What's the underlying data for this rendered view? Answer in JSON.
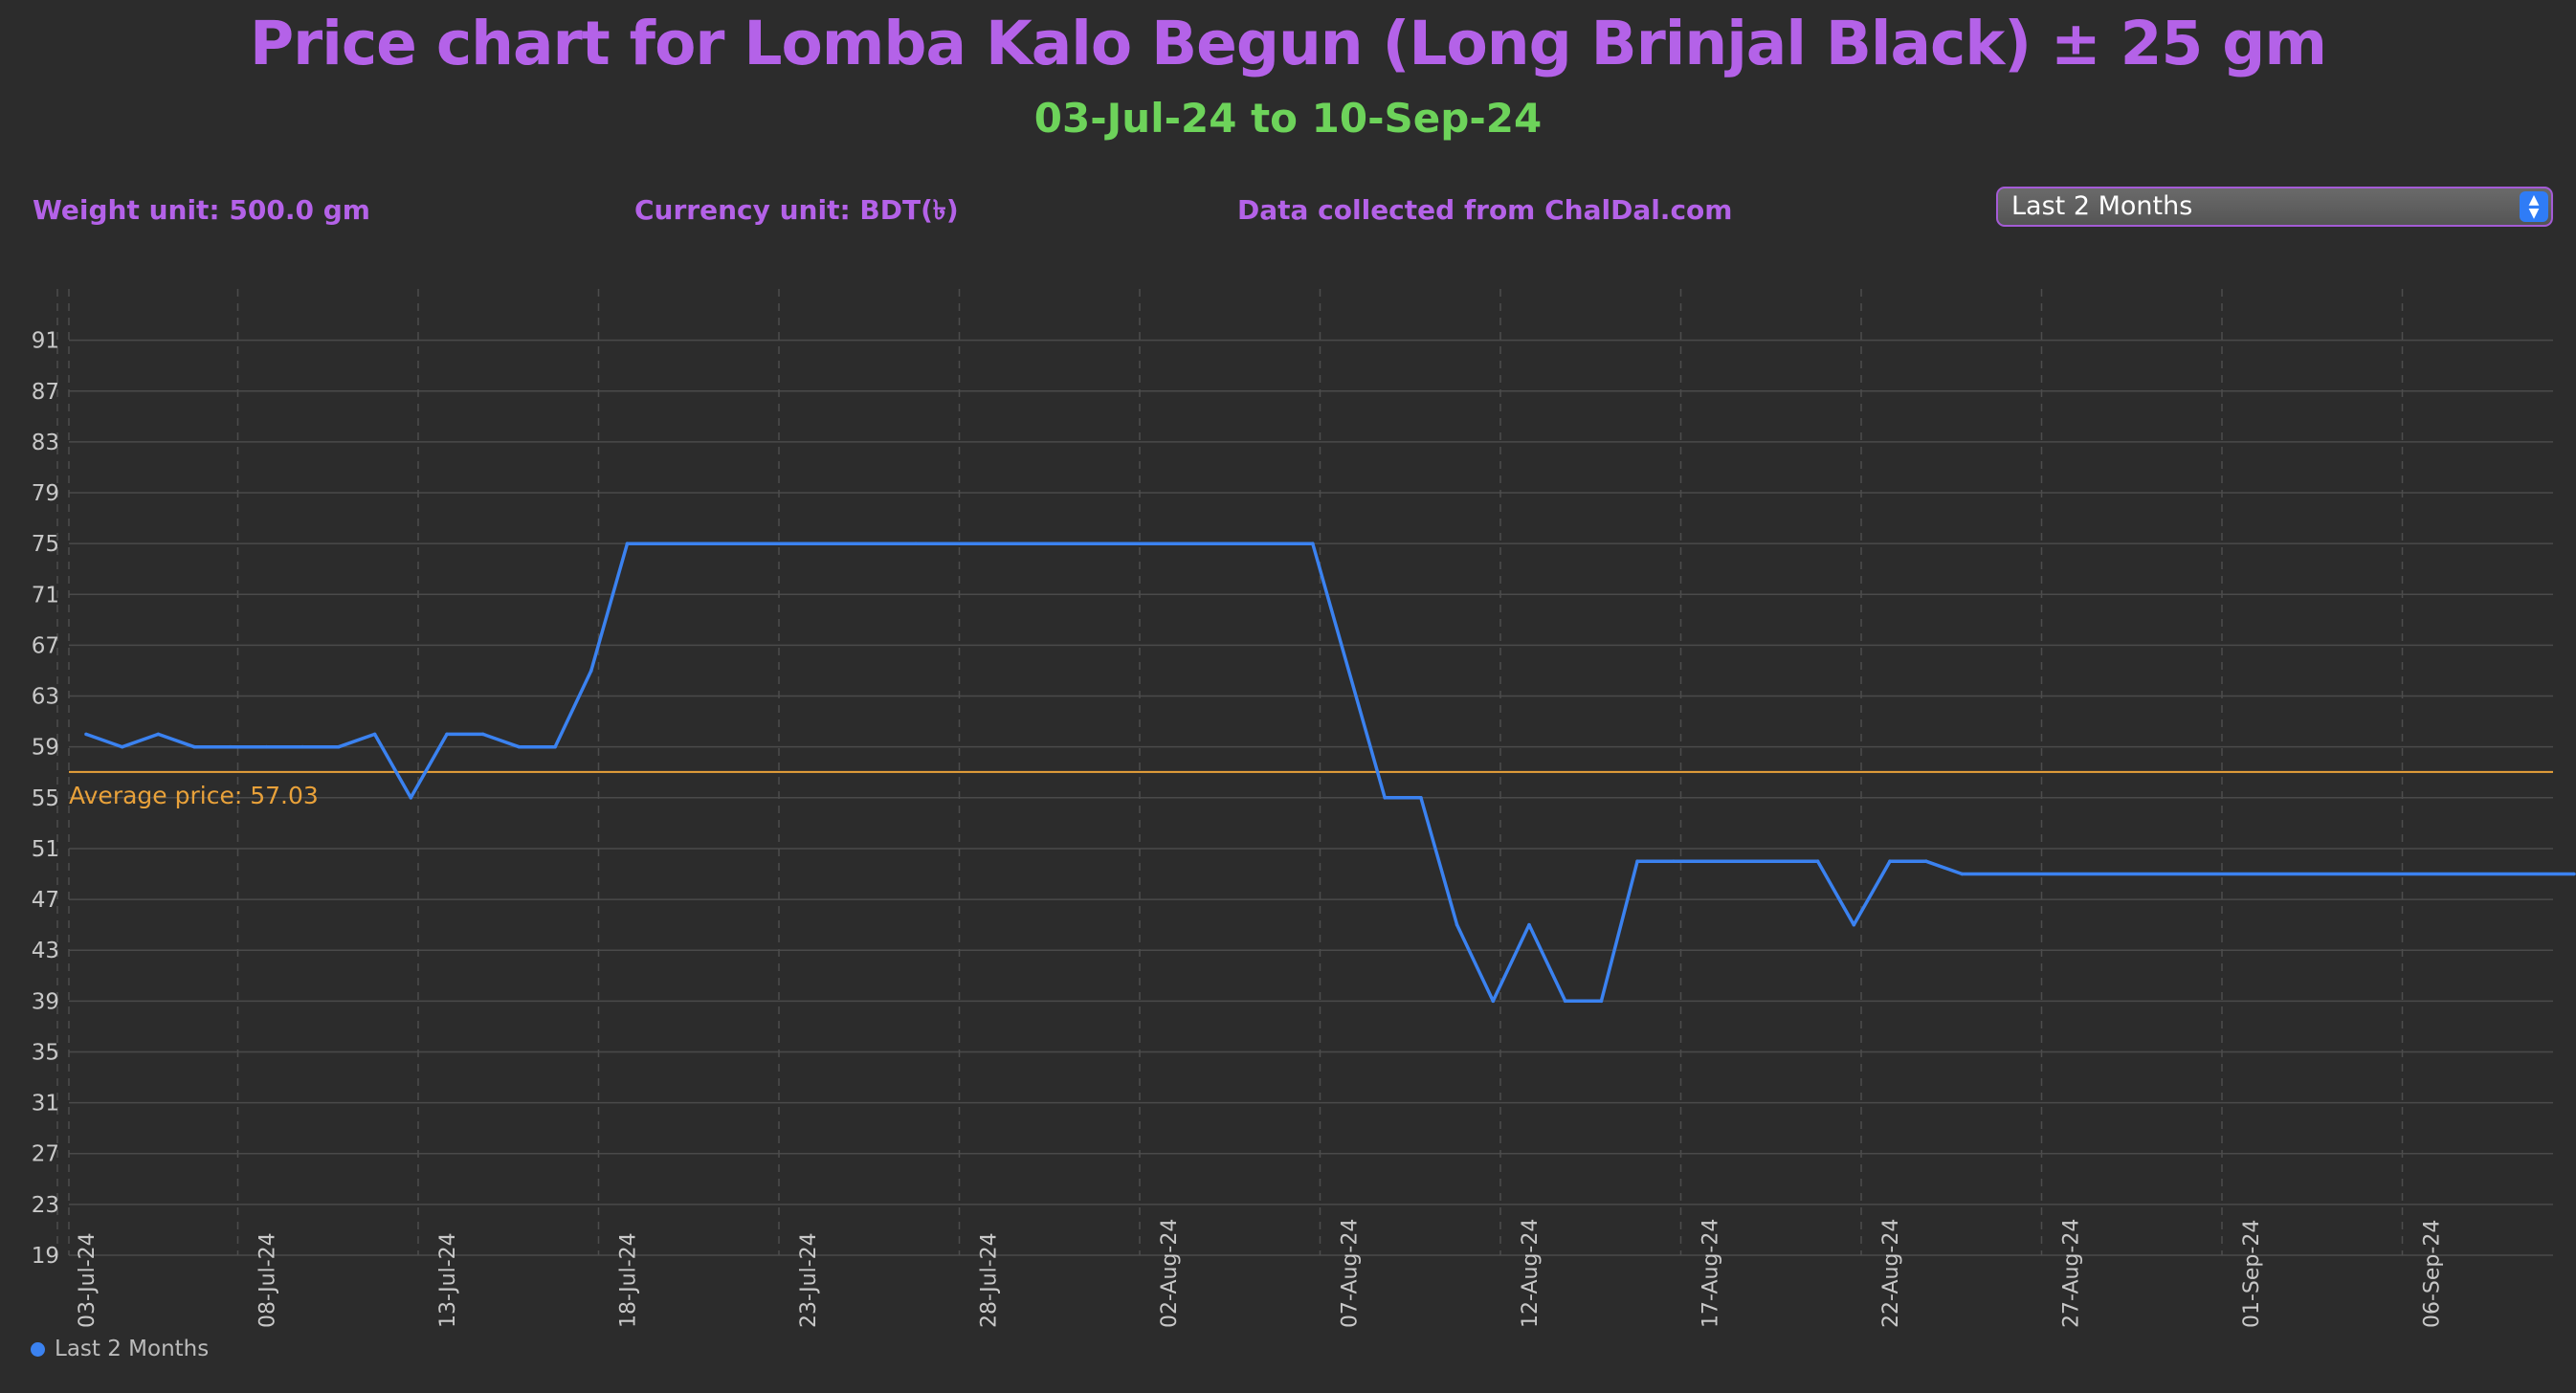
{
  "header": {
    "title": "Price chart for Lomba Kalo Begun (Long Brinjal Black) ± 25 gm",
    "date_range": "03-Jul-24 to 10-Sep-24"
  },
  "info": {
    "weight_unit": "Weight unit: 500.0 gm",
    "currency_unit": "Currency unit: BDT(৳)",
    "source": "Data collected from ChalDal.com"
  },
  "range_select": {
    "selected": "Last 2 Months"
  },
  "colors": {
    "accent": "#b462e8",
    "subtitle": "#6dd35a",
    "series": "#3b82f0",
    "average": "#e8a13a"
  },
  "legend": {
    "label": "Last 2 Months"
  },
  "average": {
    "label": "Average price: 57.03",
    "value": 57.03
  },
  "chart_data": {
    "type": "line",
    "title": "Price chart for Lomba Kalo Begun (Long Brinjal Black) ± 25 gm",
    "subtitle": "03-Jul-24 to 10-Sep-24",
    "xlabel": "",
    "ylabel": "",
    "ylim": [
      19,
      95
    ],
    "yticks": [
      19,
      23,
      27,
      31,
      35,
      39,
      43,
      47,
      51,
      55,
      59,
      63,
      67,
      71,
      75,
      79,
      83,
      87,
      91
    ],
    "xticks": [
      "03-Jul-24",
      "08-Jul-24",
      "13-Jul-24",
      "18-Jul-24",
      "23-Jul-24",
      "28-Jul-24",
      "02-Aug-24",
      "07-Aug-24",
      "12-Aug-24",
      "17-Aug-24",
      "22-Aug-24",
      "27-Aug-24",
      "01-Sep-24",
      "06-Sep-24"
    ],
    "grid": true,
    "legend_position": "bottom-left",
    "series": [
      {
        "name": "Last 2 Months",
        "x": [
          "03-Jul-24",
          "04-Jul-24",
          "05-Jul-24",
          "06-Jul-24",
          "07-Jul-24",
          "08-Jul-24",
          "09-Jul-24",
          "10-Jul-24",
          "11-Jul-24",
          "12-Jul-24",
          "13-Jul-24",
          "14-Jul-24",
          "15-Jul-24",
          "16-Jul-24",
          "17-Jul-24",
          "18-Jul-24",
          "26-Jul-24",
          "06-Aug-24",
          "08-Aug-24",
          "09-Aug-24",
          "10-Aug-24",
          "11-Aug-24",
          "12-Aug-24",
          "13-Aug-24",
          "14-Aug-24",
          "15-Aug-24",
          "16-Aug-24",
          "20-Aug-24",
          "21-Aug-24",
          "22-Aug-24",
          "23-Aug-24",
          "24-Aug-24",
          "10-Sep-24"
        ],
        "y": [
          60,
          59,
          60,
          59,
          59,
          59,
          59,
          59,
          60,
          55,
          60,
          60,
          59,
          59,
          65,
          75,
          75,
          75,
          55,
          55,
          45,
          39,
          45,
          39,
          39,
          50,
          50,
          50,
          45,
          50,
          50,
          49,
          49
        ]
      }
    ],
    "average_line": {
      "label": "Average price: 57.03",
      "value": 57.03
    }
  }
}
